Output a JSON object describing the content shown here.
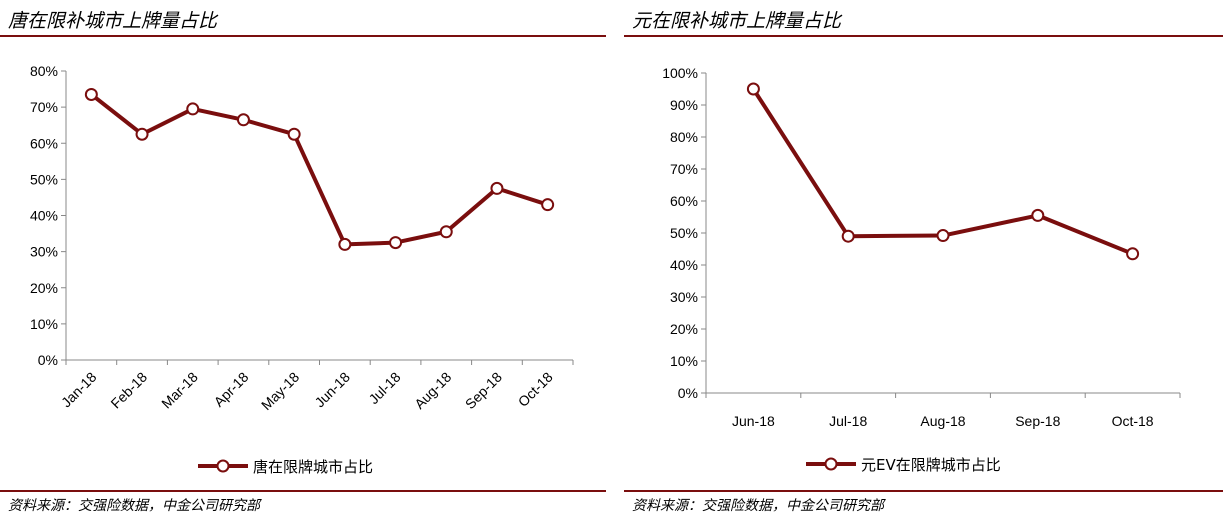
{
  "left_panel": {
    "title": "唐在限补城市上牌量占比",
    "source": "资料来源：交强险数据，中金公司研究部"
  },
  "right_panel": {
    "title": "元在限补城市上牌量占比",
    "source": "资料来源：交强险数据，中金公司研究部"
  },
  "colors": {
    "series": "#7a0e0e",
    "rule": "#7a0e0e",
    "marker_fill": "#ffffff"
  },
  "chart_data": [
    {
      "type": "line",
      "title": "唐在限补城市上牌量占比",
      "categories": [
        "Jan-18",
        "Feb-18",
        "Mar-18",
        "Apr-18",
        "May-18",
        "Jun-18",
        "Jul-18",
        "Aug-18",
        "Sep-18",
        "Oct-18"
      ],
      "series": [
        {
          "name": "唐在限牌城市占比",
          "values": [
            73.5,
            62.5,
            69.5,
            66.5,
            62.5,
            32,
            32.5,
            35.5,
            47.5,
            43
          ]
        }
      ],
      "y_ticks": [
        "0%",
        "10%",
        "20%",
        "30%",
        "40%",
        "50%",
        "60%",
        "70%",
        "80%"
      ],
      "ylim": [
        0,
        80
      ],
      "y_unit": "%",
      "grid": false,
      "legend_position": "bottom"
    },
    {
      "type": "line",
      "title": "元在限补城市上牌量占比",
      "categories": [
        "Jun-18",
        "Jul-18",
        "Aug-18",
        "Sep-18",
        "Oct-18"
      ],
      "series": [
        {
          "name": "元EV在限牌城市占比",
          "values": [
            95,
            49,
            49.2,
            55.5,
            43.5
          ]
        }
      ],
      "y_ticks": [
        "0%",
        "10%",
        "20%",
        "30%",
        "40%",
        "50%",
        "60%",
        "70%",
        "80%",
        "90%",
        "100%"
      ],
      "ylim": [
        0,
        100
      ],
      "y_unit": "%",
      "grid": false,
      "legend_position": "bottom"
    }
  ]
}
